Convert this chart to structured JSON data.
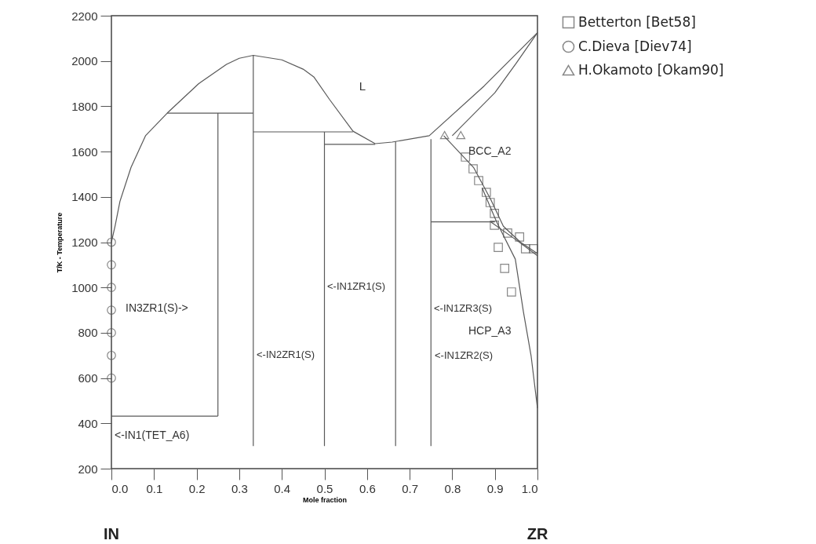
{
  "chart_data": {
    "type": "line",
    "xlabel": "Mole fraction",
    "ylabel": "T/K - Temperature",
    "xlim": [
      0,
      1
    ],
    "ylim": [
      200,
      2200
    ],
    "xticks": [
      {
        "value": 0,
        "label": "0.0"
      },
      0.1,
      0.2,
      0.3,
      0.4,
      0.5,
      0.6,
      0.7,
      0.8,
      0.9,
      {
        "value": 1,
        "label": "1.0"
      }
    ],
    "yticks": [
      200,
      400,
      600,
      800,
      1000,
      1200,
      1400,
      1600,
      1800,
      2000,
      2200
    ],
    "grid": false,
    "legend": "top right",
    "series": [
      {
        "color": "#595959",
        "x": [
          0,
          0.009,
          0.02,
          0.046,
          0.08,
          0.131,
          0.205,
          0.27,
          0.3,
          0.333,
          0.4,
          0.45,
          0.475,
          0.512,
          0.567,
          0.619,
          0.659,
          0.746,
          0.875,
          1.0
        ],
        "values": [
          1200,
          1275,
          1380,
          1530,
          1670,
          1770,
          1900,
          1985,
          2012,
          2025,
          2005,
          1964,
          1930,
          1830,
          1690,
          1635,
          1642,
          1670,
          1890,
          2125
        ]
      },
      {
        "color": "#595959",
        "x": [
          0.8,
          0.9,
          0.95,
          1.0
        ],
        "values": [
          1670,
          1860,
          1990,
          2125
        ]
      },
      {
        "color": "#595959",
        "x": [
          0.131,
          0.333
        ],
        "values": [
          1770,
          1770
        ]
      },
      {
        "color": "#595959",
        "x": [
          0.25,
          0.25
        ],
        "values": [
          1770,
          432
        ]
      },
      {
        "color": "#595959",
        "x": [
          0,
          0.25
        ],
        "values": [
          432,
          432
        ]
      },
      {
        "color": "#595959",
        "x": [
          0.333,
          0.333
        ],
        "values": [
          2025,
          300
        ]
      },
      {
        "color": "#595959",
        "x": [
          0.333,
          0.567
        ],
        "values": [
          1687,
          1687
        ]
      },
      {
        "color": "#595959",
        "x": [
          0.5,
          0.5
        ],
        "values": [
          1687,
          300
        ]
      },
      {
        "color": "#595959",
        "x": [
          0.5,
          0.619
        ],
        "values": [
          1632,
          1632
        ]
      },
      {
        "color": "#595959",
        "x": [
          0.667,
          0.667
        ],
        "values": [
          1645,
          300
        ]
      },
      {
        "color": "#595959",
        "x": [
          0.75,
          0.75
        ],
        "values": [
          1655,
          300
        ]
      },
      {
        "color": "#595959",
        "x": [
          0.75,
          0.9
        ],
        "values": [
          1290,
          1290
        ]
      },
      {
        "color": "#595959",
        "x": [
          0.78,
          0.85,
          0.89,
          0.92,
          0.96,
          1.0
        ],
        "values": [
          1670,
          1530,
          1390,
          1270,
          1200,
          1150
        ]
      },
      {
        "color": "#595959",
        "x": [
          0.89,
          0.95,
          1.0
        ],
        "values": [
          1290,
          1210,
          1140
        ]
      },
      {
        "color": "#595959",
        "x": [
          0.87,
          0.904,
          0.948,
          0.967,
          0.985,
          1.0
        ],
        "values": [
          1440,
          1290,
          1125,
          893,
          699,
          467
        ]
      },
      {
        "type": "scatter",
        "name": "Betterton [Bet58]",
        "marker": "square",
        "color": "#555555",
        "x": [
          0.831,
          0.849,
          0.862,
          0.88,
          0.889,
          0.899,
          0.899,
          0.93,
          0.958,
          0.972,
          0.991,
          0.908,
          0.923,
          0.939
        ],
        "values": [
          1576,
          1524,
          1472,
          1420,
          1375,
          1327,
          1275,
          1240,
          1223,
          1171,
          1171,
          1177,
          1084,
          980
        ]
      },
      {
        "type": "scatter",
        "name": "C.Dieva [Diev74]",
        "marker": "circle",
        "color": "#555555",
        "x": [
          0,
          0,
          0,
          0,
          0,
          0,
          0
        ],
        "values": [
          600,
          700,
          800,
          900,
          1000,
          1100,
          1200
        ]
      },
      {
        "type": "scatter",
        "name": "H.Okamoto [Okam90]",
        "marker": "triangle",
        "color": "#555555",
        "x": [
          0.782,
          0.82
        ],
        "values": [
          1673,
          1673
        ]
      }
    ],
    "annotations": [
      "L",
      "BCC_A2",
      "HCP_A3",
      "<-IN1ZR3(S)",
      "<-IN1ZR2(S)",
      "<-IN1ZR1(S)",
      "<-IN2ZR1(S)",
      "IN3ZR1(S)->",
      "<-IN1(TET_A6)",
      "IN",
      "ZR"
    ]
  }
}
